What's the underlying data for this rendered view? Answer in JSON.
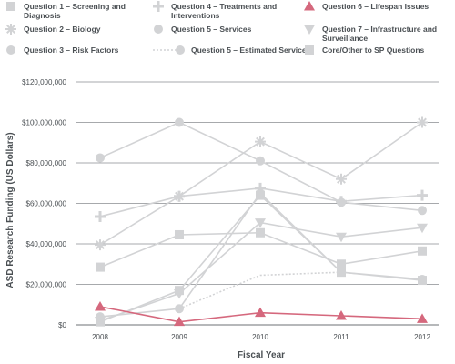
{
  "chart_data": {
    "type": "line",
    "title": "",
    "xlabel": "Fiscal Year",
    "ylabel": "ASD Research Funding (US Dollars)",
    "categories": [
      "2008",
      "2009",
      "2010",
      "2011",
      "2012"
    ],
    "ylim": [
      0,
      120000000
    ],
    "yticks": [
      0,
      20000000,
      40000000,
      60000000,
      80000000,
      100000000,
      120000000
    ],
    "ytick_labels": [
      "$0",
      "$20,000,000",
      "$40,000,000",
      "$60,000,000",
      "$80,000,000",
      "$100,000,000",
      "$120,000,000"
    ],
    "grid": true,
    "legend_position": "top",
    "series": [
      {
        "name": "Question 1 – Screening and Diagnosis",
        "marker": "square",
        "color": "#d2d3d5",
        "dashed": false,
        "values": [
          1500000,
          17000000,
          64000000,
          26000000,
          22000000
        ]
      },
      {
        "name": "Question 2 – Biology",
        "marker": "asterisk",
        "color": "#d2d3d5",
        "dashed": false,
        "values": [
          39500000,
          63500000,
          90500000,
          72000000,
          100000000
        ]
      },
      {
        "name": "Question 3 – Risk Factors",
        "marker": "circle",
        "color": "#d2d3d5",
        "dashed": false,
        "values": [
          82500000,
          100000000,
          81000000,
          60500000,
          56500000
        ]
      },
      {
        "name": "Question 4 – Treatments and Interventions",
        "marker": "plus",
        "color": "#d2d3d5",
        "dashed": false,
        "values": [
          53500000,
          63500000,
          67500000,
          61000000,
          64000000
        ]
      },
      {
        "name": "Question 5 – Services",
        "marker": "circle",
        "color": "#d2d3d5",
        "dashed": false,
        "values": [
          4000000,
          8000000,
          65000000,
          26000000,
          22500000
        ]
      },
      {
        "name": "Question 5 – Estimated Services",
        "marker": "circle",
        "color": "#d2d3d5",
        "dashed": true,
        "values": [
          null,
          8000000,
          24500000,
          26000000,
          null
        ]
      },
      {
        "name": "Question 6 – Lifespan Issues",
        "marker": "triangle-up",
        "color": "#d5687d",
        "dashed": false,
        "values": [
          9000000,
          1500000,
          6000000,
          4500000,
          3000000
        ]
      },
      {
        "name": "Question 7 – Infrastructure and Surveillance",
        "marker": "triangle-down",
        "color": "#d2d3d5",
        "dashed": false,
        "values": [
          2000000,
          15500000,
          50500000,
          43500000,
          48000000
        ]
      },
      {
        "name": "Core/Other to SP Questions",
        "marker": "square",
        "color": "#d2d3d5",
        "dashed": false,
        "values": [
          28500000,
          44500000,
          45500000,
          30000000,
          36500000
        ]
      }
    ]
  },
  "legend": [
    {
      "label_lines": [
        "Question 1 – Screening and",
        "Diagnosis"
      ],
      "marker": "square"
    },
    {
      "label_lines": [
        "Question 4 – Treatments and",
        "Interventions"
      ],
      "marker": "plus"
    },
    {
      "label_lines": [
        "Question 6 – Lifespan Issues"
      ],
      "marker": "triangle-up"
    },
    {
      "label_lines": [
        "Question 2 – Biology"
      ],
      "marker": "asterisk"
    },
    {
      "label_lines": [
        "Question 5 – Services"
      ],
      "marker": "circle"
    },
    {
      "label_lines": [
        "Question 7 – Infrastructure and",
        "Surveillance"
      ],
      "marker": "triangle-down"
    },
    {
      "label_lines": [
        "Question 3 – Risk Factors"
      ],
      "marker": "circle"
    },
    {
      "label_lines": [
        "Question 5 – Estimated Services"
      ],
      "marker": "dashed-circle"
    },
    {
      "label_lines": [
        "Core/Other to SP Questions"
      ],
      "marker": "square"
    }
  ],
  "colors": {
    "series_gray": "#d2d3d5",
    "highlight": "#d5687d",
    "grid": "#8a8d90",
    "text": "#4a4f53"
  }
}
